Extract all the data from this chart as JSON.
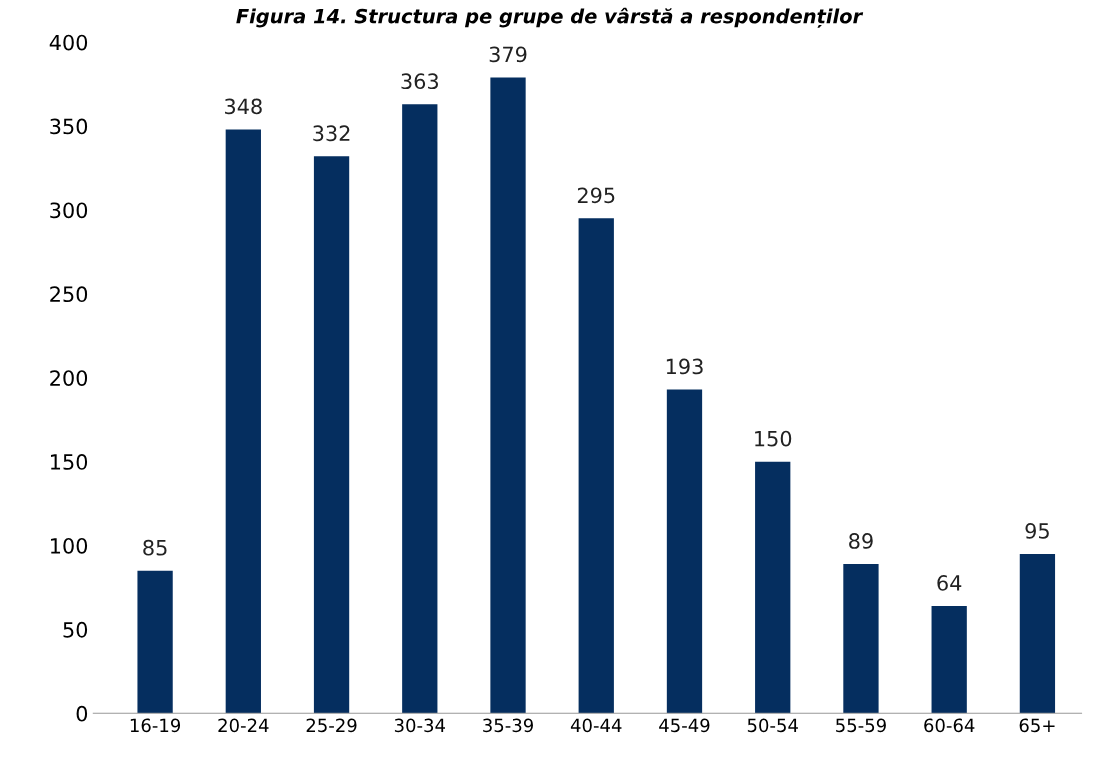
{
  "chart_data": {
    "type": "bar",
    "title": "Figura 14. Structura pe grupe de vârstă a respondenților",
    "categories": [
      "16-19",
      "20-24",
      "25-29",
      "30-34",
      "35-39",
      "40-44",
      "45-49",
      "50-54",
      "55-59",
      "60-64",
      "65+"
    ],
    "values": [
      85,
      348,
      332,
      363,
      379,
      295,
      193,
      150,
      89,
      64,
      95
    ],
    "color": "#052e5f",
    "ylim": [
      0,
      400
    ],
    "yticks": [
      0,
      50,
      100,
      150,
      200,
      250,
      300,
      350,
      400
    ],
    "data_labels": true,
    "grid": false,
    "legend": false
  }
}
